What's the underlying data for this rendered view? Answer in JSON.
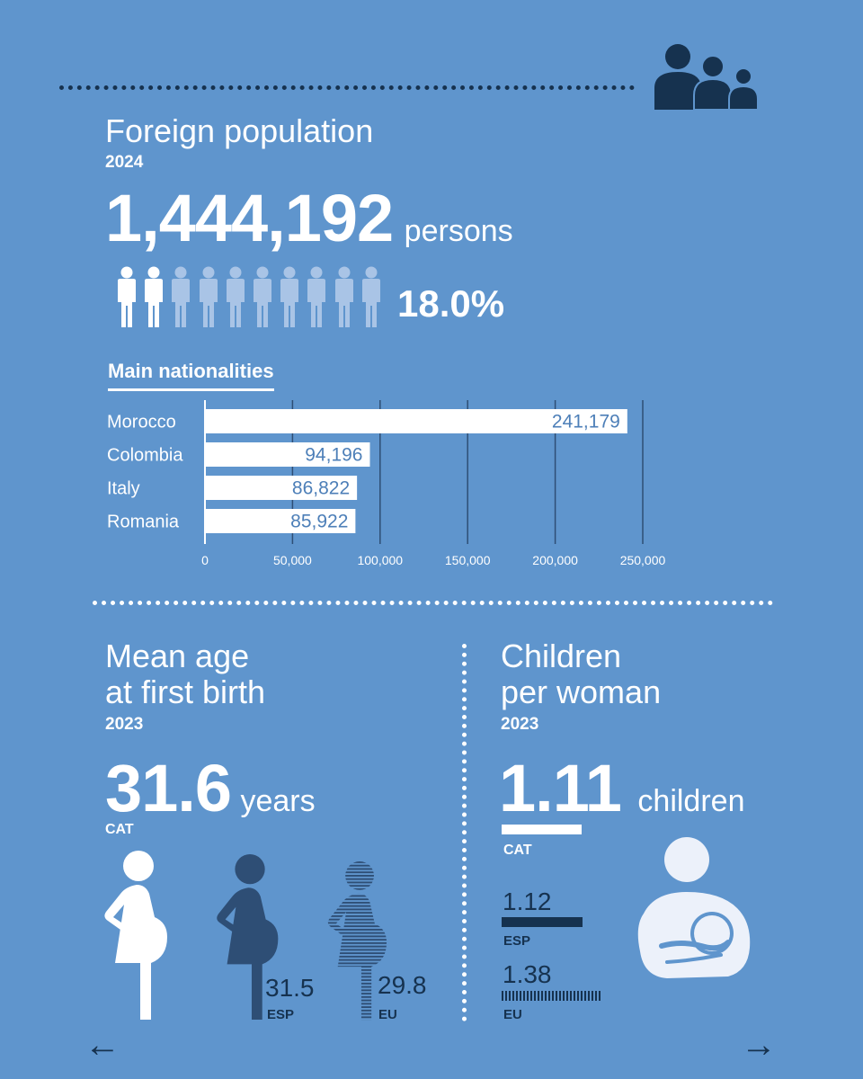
{
  "colors": {
    "background": "#5f95cd",
    "dark_navy": "#16324f",
    "white": "#ffffff",
    "faded_person": "#a9c4e6",
    "bar_value_text": "#4d7fb8"
  },
  "icons": {
    "header": "family-icon",
    "person": "person-icon",
    "pregnant": "pregnant-woman-icon",
    "breastfeeding": "breastfeeding-mother-icon",
    "prev": "arrow-left-icon",
    "next": "arrow-right-icon"
  },
  "foreign_population": {
    "title": "Foreign population",
    "year": "2024",
    "total": "1,444,192",
    "unit": "persons",
    "percentage": "18.0%",
    "people_filled": 2,
    "people_total": 10
  },
  "nationalities": {
    "heading": "Main nationalities"
  },
  "chart_data": {
    "type": "bar",
    "orientation": "horizontal",
    "categories": [
      "Morocco",
      "Colombia",
      "Italy",
      "Romania"
    ],
    "values": [
      241179,
      94196,
      86822,
      85922
    ],
    "value_labels": [
      "241,179",
      "94,196",
      "86,822",
      "85,922"
    ],
    "xlim": [
      0,
      250000
    ],
    "ticks": [
      0,
      50000,
      100000,
      150000,
      200000,
      250000
    ],
    "tick_labels": [
      "0",
      "50,000",
      "100,000",
      "150,000",
      "200,000",
      "250,000"
    ],
    "grid": true
  },
  "mean_age": {
    "title_line1": "Mean age",
    "title_line2": "at first birth",
    "year": "2023",
    "value": "31.6",
    "unit": "years",
    "region": "CAT",
    "esp_value": "31.5",
    "esp_label": "ESP",
    "eu_value": "29.8",
    "eu_label": "EU"
  },
  "fertility": {
    "title_line1": "Children",
    "title_line2": "per woman",
    "year": "2023",
    "value": "1.11",
    "unit": "children",
    "region": "CAT",
    "esp_value": "1.12",
    "esp_label": "ESP",
    "eu_value": "1.38",
    "eu_label": "EU",
    "values_numeric": {
      "cat": 1.11,
      "esp": 1.12,
      "eu": 1.38
    }
  },
  "navigation": {
    "prev": "←",
    "next": "→"
  }
}
